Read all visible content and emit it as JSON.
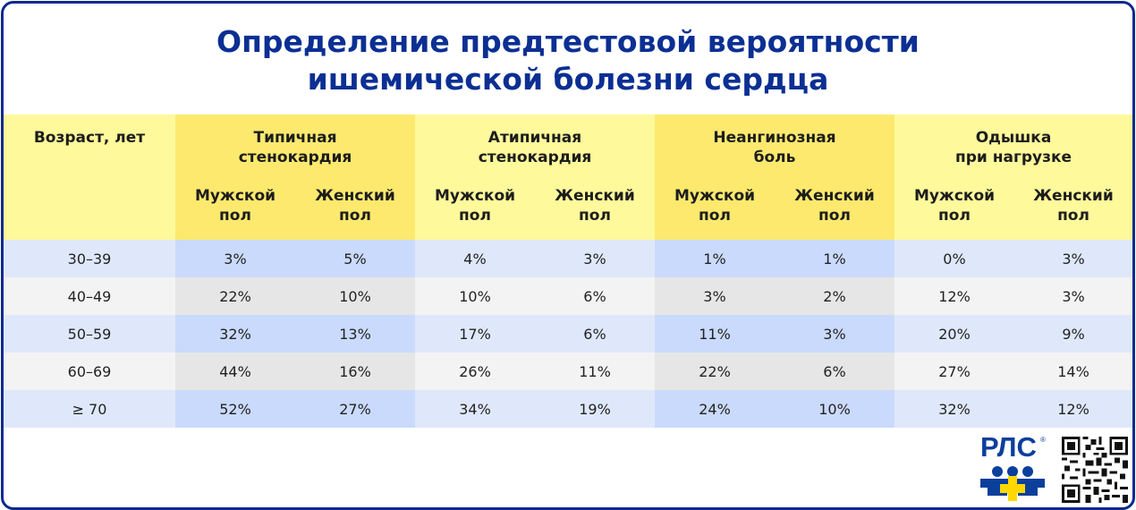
{
  "title_line1": "Определение предтестовой вероятности",
  "title_line2": "ишемической болезни сердца",
  "header": {
    "age": "Возраст, лет",
    "groups": [
      {
        "line1": "Типичная",
        "line2": "стенокардия"
      },
      {
        "line1": "Атипичная",
        "line2": "стенокардия"
      },
      {
        "line1": "Неангинозная",
        "line2": "боль"
      },
      {
        "line1": "Одышка",
        "line2": "при нагрузке"
      }
    ],
    "male_l1": "Мужской",
    "male_l2": "пол",
    "female_l1": "Женский",
    "female_l2": "пол"
  },
  "rows": [
    {
      "age": "30–39",
      "v": [
        "3%",
        "5%",
        "4%",
        "3%",
        "1%",
        "1%",
        "0%",
        "3%"
      ]
    },
    {
      "age": "40–49",
      "v": [
        "22%",
        "10%",
        "10%",
        "6%",
        "3%",
        "2%",
        "12%",
        "3%"
      ]
    },
    {
      "age": "50–59",
      "v": [
        "32%",
        "13%",
        "17%",
        "6%",
        "11%",
        "3%",
        "20%",
        "9%"
      ]
    },
    {
      "age": "60–69",
      "v": [
        "44%",
        "16%",
        "26%",
        "11%",
        "22%",
        "6%",
        "27%",
        "14%"
      ]
    },
    {
      "age": "≥ 70",
      "v": [
        "52%",
        "27%",
        "34%",
        "19%",
        "24%",
        "10%",
        "32%",
        "12%"
      ]
    }
  ],
  "logo": {
    "text": "РЛС",
    "mark": "®"
  },
  "colors": {
    "title": "#0b2f93",
    "border": "#0a2a8c",
    "header_light": "#fef99b",
    "header_dark": "#fde96e"
  }
}
